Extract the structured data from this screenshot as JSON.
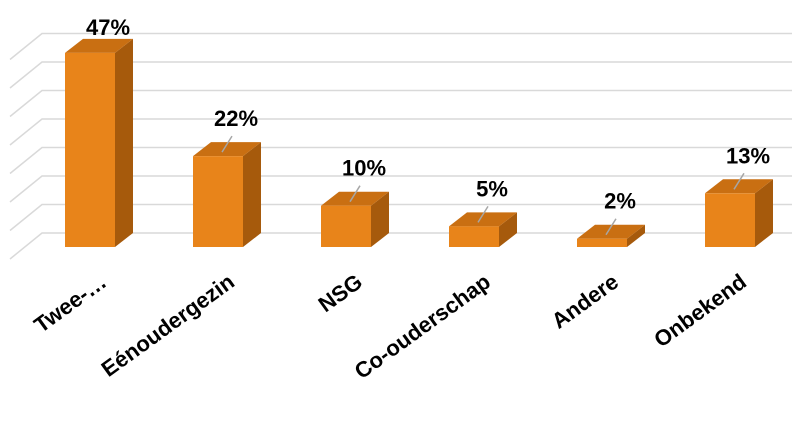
{
  "chart_data": {
    "type": "bar",
    "style": "3d-column",
    "categories": [
      "Twee-…",
      "Eénoudergezin",
      "NSG",
      "Co-ouderschap",
      "Andere",
      "Onbekend"
    ],
    "values": [
      47,
      22,
      10,
      5,
      2,
      13
    ],
    "data_labels": [
      "47%",
      "22%",
      "10%",
      "5%",
      "2%",
      "13%"
    ],
    "ylim": [
      0,
      50
    ],
    "grid": true,
    "legend": "none",
    "colors": {
      "front": "#E8841A",
      "side": "#A65A0C",
      "top": "#C96F12",
      "grid": "#D9D9D9"
    }
  }
}
